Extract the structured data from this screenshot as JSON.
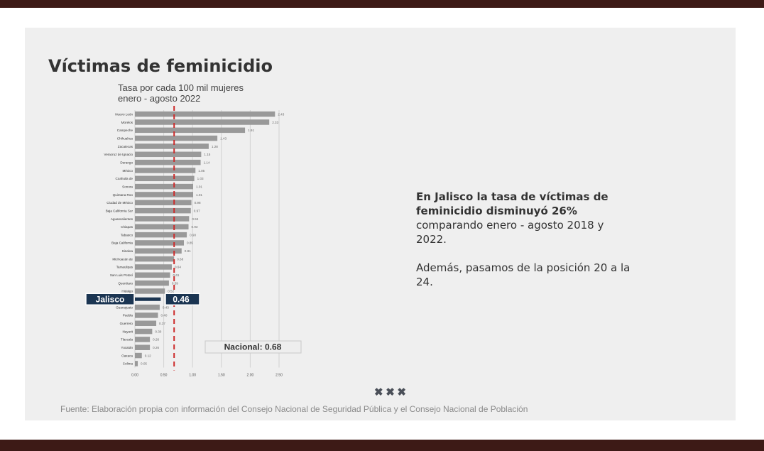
{
  "slide": {
    "title": "Víctimas de feminicidio",
    "subtitle_line1": "Tasa por cada 100 mil mujeres",
    "subtitle_line2": "enero - agosto 2022",
    "side_text_bold_1": "En Jalisco la tasa de víctimas de",
    "side_text_bold_2": "feminicidio disminuyó 26%",
    "side_text_normal_1": "comparando enero - agosto 2018 y",
    "side_text_normal_2": "2022.",
    "side_text_para2_1": "Además, pasamos de la posición 20 a la",
    "side_text_para2_2": "24.",
    "nav_marks": [
      "✖",
      "✖",
      "✖"
    ],
    "source": "Fuente: Elaboración propia con información del Consejo Nacional de Seguridad Pública y el Consejo Nacional de Población"
  },
  "chart_data": {
    "type": "bar",
    "orientation": "horizontal",
    "categories": [
      "Nuevo León",
      "Morelos",
      "Campeche",
      "Chihuahua",
      "Zacatecas",
      "Veracruz de Ignacio",
      "Durango",
      "México",
      "Coahuila de",
      "Sonora",
      "Quintana Roo",
      "Ciudad de México",
      "Baja California Sur",
      "Aguascalientes",
      "Chiapas",
      "Tabasco",
      "Baja California",
      "Sinaloa",
      "Michoacán de",
      "Tamaulipas",
      "San Luis Potosí",
      "Querétaro",
      "Hidalgo",
      "Jalisco",
      "Guanajuato",
      "Puebla",
      "Guerrero",
      "Nayarit",
      "Tlaxcala",
      "Yucatán",
      "Oaxaca",
      "Colima"
    ],
    "values": [
      2.43,
      2.33,
      1.91,
      1.43,
      1.28,
      1.15,
      1.14,
      1.05,
      1.03,
      1.01,
      1.01,
      0.98,
      0.97,
      0.94,
      0.93,
      0.9,
      0.85,
      0.81,
      0.68,
      0.64,
      0.61,
      0.59,
      0.52,
      0.46,
      0.43,
      0.4,
      0.37,
      0.3,
      0.26,
      0.26,
      0.12,
      0.05
    ],
    "value_labels": [
      "2.43",
      "2.33",
      "1.91",
      "1.43",
      "1.28",
      "1.15",
      "1.14",
      "1.05",
      "1.03",
      "1.01",
      "1.01",
      "0.98",
      "0.97",
      "0.94",
      "0.93",
      "0.90",
      "0.85",
      "0.81",
      "0.68",
      "0.64",
      "0.61",
      "0.59",
      "0.52",
      "0.46",
      "0.43",
      "0.40",
      "0.37",
      "0.30",
      "0.26",
      "0.26",
      "0.12",
      "0.05"
    ],
    "x_ticks": [
      "0.00",
      "0.50",
      "1.00",
      "1.50",
      "2.00",
      "2.50"
    ],
    "xlim": [
      0,
      2.5
    ],
    "grid": "vertical",
    "highlight": {
      "category": "Jalisco",
      "label": "Jalisco",
      "value_label": "0.46"
    },
    "reference_line": {
      "value": 0.68,
      "label": "Nacional: 0.68"
    },
    "colors": {
      "bar": "#999999",
      "highlight": "#1b3552",
      "reference": "#cc2a2a"
    }
  }
}
